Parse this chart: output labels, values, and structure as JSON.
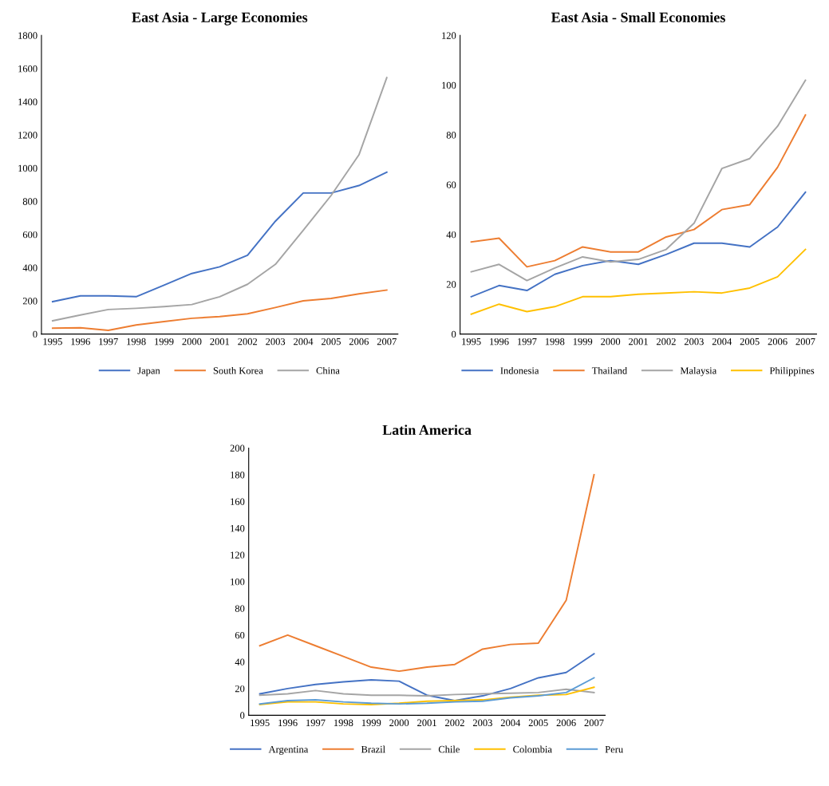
{
  "chart_data": [
    {
      "type": "line",
      "title": "East Asia - Large Economies",
      "categories": [
        "1995",
        "1996",
        "1997",
        "1998",
        "1999",
        "2000",
        "2001",
        "2002",
        "2003",
        "2004",
        "2005",
        "2006",
        "2007"
      ],
      "ylim": [
        0,
        1800
      ],
      "yticks": [
        0,
        200,
        400,
        600,
        800,
        1000,
        1200,
        1400,
        1600,
        1800
      ],
      "grid": false,
      "legend": "bottom",
      "marker": "none",
      "series": [
        {
          "name": "Japan",
          "color": "#4472c4",
          "values": [
            195,
            230,
            230,
            225,
            295,
            365,
            405,
            475,
            680,
            850,
            850,
            895,
            975
          ]
        },
        {
          "name": "South Korea",
          "color": "#ed7d31",
          "values": [
            35,
            38,
            22,
            55,
            75,
            95,
            105,
            122,
            160,
            200,
            215,
            242,
            265
          ]
        },
        {
          "name": "China",
          "color": "#a5a5a5",
          "values": [
            80,
            115,
            148,
            155,
            165,
            178,
            225,
            300,
            420,
            625,
            835,
            1080,
            1545
          ]
        }
      ]
    },
    {
      "type": "line",
      "title": "East Asia - Small Economies",
      "categories": [
        "1995",
        "1996",
        "1997",
        "1998",
        "1999",
        "2000",
        "2001",
        "2002",
        "2003",
        "2004",
        "2005",
        "2006",
        "2007"
      ],
      "ylim": [
        0,
        120
      ],
      "yticks": [
        0,
        20,
        40,
        60,
        80,
        100,
        120
      ],
      "grid": false,
      "legend": "bottom",
      "marker": "none",
      "series": [
        {
          "name": "Indonesia",
          "color": "#4472c4",
          "values": [
            15,
            19.5,
            17.5,
            24,
            27.5,
            29.5,
            28,
            32,
            36.5,
            36.5,
            35,
            43,
            57
          ]
        },
        {
          "name": "Thailand",
          "color": "#ed7d31",
          "values": [
            37,
            38.5,
            27,
            29.5,
            35,
            33,
            33,
            39,
            42,
            50,
            52,
            67,
            88
          ]
        },
        {
          "name": "Malaysia",
          "color": "#a5a5a5",
          "values": [
            25,
            28,
            21.5,
            26.5,
            31,
            29,
            30,
            34,
            44.5,
            66.5,
            70.5,
            83.5,
            102
          ]
        },
        {
          "name": "Philippines",
          "color": "#ffc000",
          "values": [
            8,
            12,
            9,
            11,
            15,
            15,
            16,
            16.5,
            17,
            16.5,
            18.5,
            23,
            34
          ]
        }
      ]
    },
    {
      "type": "line",
      "title": "Latin America",
      "categories": [
        "1995",
        "1996",
        "1997",
        "1998",
        "1999",
        "2000",
        "2001",
        "2002",
        "2003",
        "2004",
        "2005",
        "2006",
        "2007"
      ],
      "ylim": [
        0,
        200
      ],
      "yticks": [
        0,
        20,
        40,
        60,
        80,
        100,
        120,
        140,
        160,
        180,
        200
      ],
      "grid": false,
      "legend": "bottom",
      "marker": "none",
      "series": [
        {
          "name": "Argentina",
          "color": "#4472c4",
          "values": [
            16,
            20,
            23,
            25,
            26.5,
            25.5,
            15,
            11,
            14.5,
            20,
            28,
            32,
            46
          ]
        },
        {
          "name": "Brazil",
          "color": "#ed7d31",
          "values": [
            52,
            60,
            52,
            44,
            36,
            33,
            36,
            38,
            49.5,
            53,
            54,
            86,
            180
          ]
        },
        {
          "name": "Chile",
          "color": "#a5a5a5",
          "values": [
            15,
            16,
            18.5,
            16,
            15,
            15,
            14.5,
            15.5,
            16,
            16.5,
            17,
            19.5,
            17
          ]
        },
        {
          "name": "Colombia",
          "color": "#ffc000",
          "values": [
            8,
            10,
            10,
            8.5,
            8,
            9,
            10.5,
            11,
            11.5,
            13.5,
            15,
            15.5,
            21
          ]
        },
        {
          "name": "Peru",
          "color": "#5b9bd5",
          "values": [
            8.5,
            11,
            11.5,
            10,
            9,
            8.5,
            9,
            10,
            10.5,
            13,
            14.5,
            17,
            28
          ]
        }
      ]
    }
  ]
}
